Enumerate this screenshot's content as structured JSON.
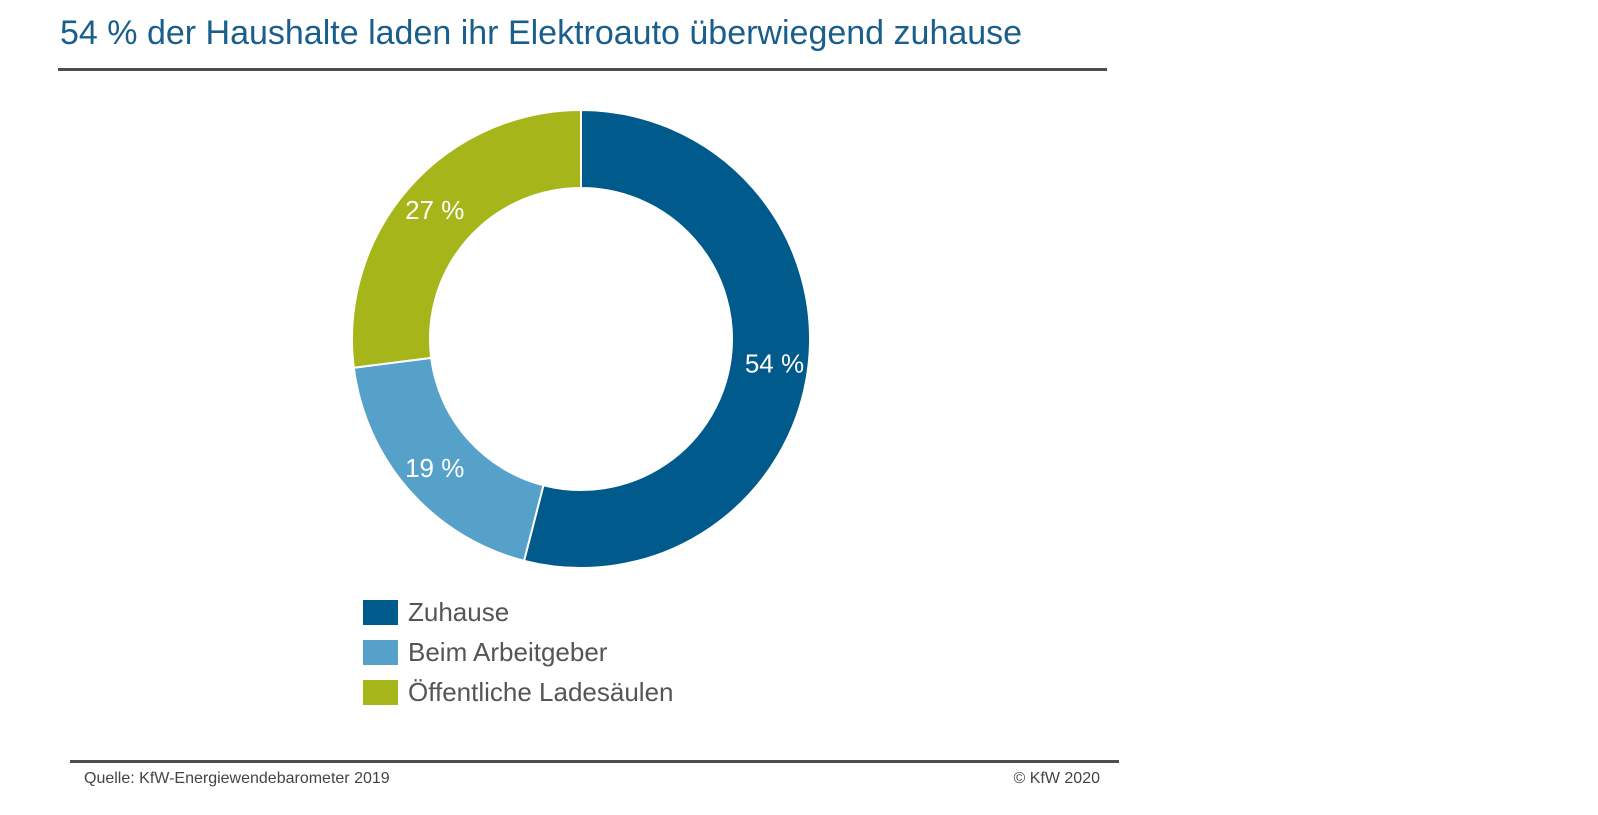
{
  "chart_data": {
    "type": "pie",
    "title": "54 % der Haushalte laden ihr Elektroauto überwiegend zuhause",
    "categories": [
      "Zuhause",
      "Beim Arbeitgeber",
      "Öffentliche Ladesäulen"
    ],
    "values": [
      54,
      19,
      27
    ],
    "value_labels": [
      "54 %",
      "19 %",
      "27 %"
    ],
    "colors": [
      "#005a8c",
      "#56a1ca",
      "#a5b51a"
    ],
    "legend_placement": "bottom",
    "source": "Quelle: KfW-Energiewendebarometer 2019",
    "copyright": "© KfW 2020"
  }
}
